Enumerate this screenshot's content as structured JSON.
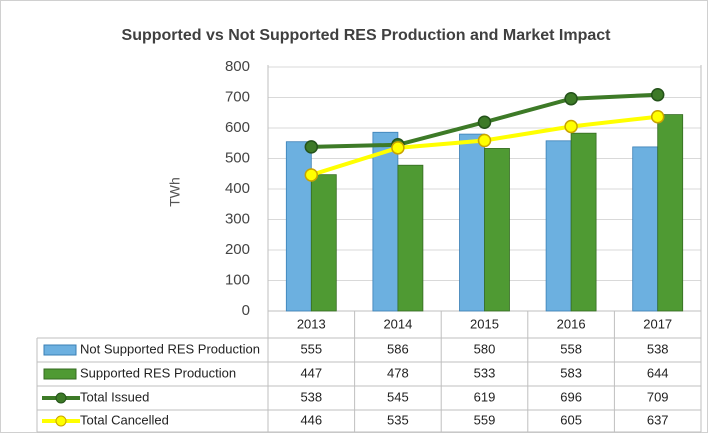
{
  "chart_data": {
    "type": "bar",
    "title": "Supported vs Not Supported RES Production and Market Impact",
    "y_label": "TWh",
    "categories": [
      "2013",
      "2014",
      "2015",
      "2016",
      "2017"
    ],
    "series": [
      {
        "name": "Not Supported RES Production",
        "type": "bar",
        "color": "#6cb0e0",
        "values": [
          555,
          586,
          580,
          558,
          538
        ]
      },
      {
        "name": "Supported RES Production",
        "type": "bar",
        "color": "#4f9a33",
        "values": [
          447,
          478,
          533,
          583,
          644
        ]
      },
      {
        "name": "Total Issued",
        "type": "line",
        "color": "#3d7a27",
        "values": [
          538,
          545,
          619,
          696,
          709
        ]
      },
      {
        "name": "Total Cancelled",
        "type": "line",
        "color": "#ffff00",
        "values": [
          446,
          535,
          559,
          605,
          637
        ]
      }
    ],
    "ylim": [
      0,
      800
    ],
    "yticks": [
      0,
      100,
      200,
      300,
      400,
      500,
      600,
      700,
      800
    ],
    "grid": true
  }
}
